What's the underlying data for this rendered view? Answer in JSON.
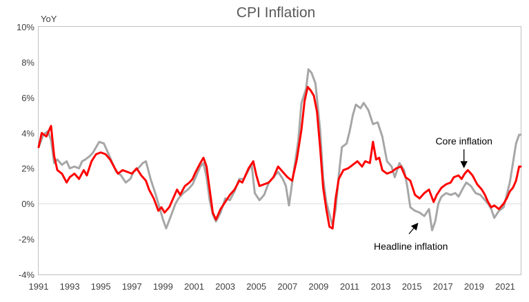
{
  "chart_data": {
    "type": "line",
    "title": "CPI Inflation",
    "ylabel": "YoY",
    "xlabel": "",
    "xlim": [
      1991.0,
      2022.0
    ],
    "ylim": [
      -4,
      10
    ],
    "x_ticks": [
      1991,
      1993,
      1995,
      1997,
      1999,
      2001,
      2003,
      2005,
      2007,
      2009,
      2011,
      2013,
      2015,
      2017,
      2019,
      2021
    ],
    "y_ticks": [
      -4,
      -2,
      0,
      2,
      4,
      6,
      8,
      10
    ],
    "y_tick_suffix": "%",
    "zero_line": true,
    "grid": false,
    "annotations": [
      {
        "text": "Core inflation",
        "series": "Core inflation",
        "x": 2018.35,
        "y": 1.95
      },
      {
        "text": "Headline inflation",
        "series": "Headline inflation",
        "x": 2015.25,
        "y": -1.0
      }
    ],
    "series": [
      {
        "name": "Headline inflation",
        "color": "#a6a6a6",
        "points": [
          [
            1991.0,
            3.2
          ],
          [
            1991.3,
            3.9
          ],
          [
            1991.6,
            4.1
          ],
          [
            1991.8,
            3.6
          ],
          [
            1992.0,
            2.3
          ],
          [
            1992.2,
            2.5
          ],
          [
            1992.5,
            2.2
          ],
          [
            1992.8,
            2.4
          ],
          [
            1993.0,
            2.0
          ],
          [
            1993.3,
            2.1
          ],
          [
            1993.6,
            2.0
          ],
          [
            1993.8,
            2.4
          ],
          [
            1994.0,
            2.5
          ],
          [
            1994.3,
            2.7
          ],
          [
            1994.5,
            2.9
          ],
          [
            1994.7,
            3.2
          ],
          [
            1994.9,
            3.5
          ],
          [
            1995.2,
            3.4
          ],
          [
            1995.5,
            2.8
          ],
          [
            1995.8,
            2.2
          ],
          [
            1996.0,
            1.8
          ],
          [
            1996.3,
            1.6
          ],
          [
            1996.6,
            1.2
          ],
          [
            1996.9,
            1.4
          ],
          [
            1997.1,
            1.8
          ],
          [
            1997.4,
            2.0
          ],
          [
            1997.7,
            2.3
          ],
          [
            1997.9,
            2.4
          ],
          [
            1998.2,
            1.4
          ],
          [
            1998.5,
            0.6
          ],
          [
            1998.8,
            -0.3
          ],
          [
            1999.0,
            -0.9
          ],
          [
            1999.2,
            -1.4
          ],
          [
            1999.5,
            -0.7
          ],
          [
            1999.8,
            0.0
          ],
          [
            2000.0,
            0.3
          ],
          [
            2000.3,
            0.6
          ],
          [
            2000.6,
            0.8
          ],
          [
            2000.9,
            1.1
          ],
          [
            2001.1,
            1.5
          ],
          [
            2001.4,
            2.1
          ],
          [
            2001.6,
            2.3
          ],
          [
            2001.8,
            1.5
          ],
          [
            2002.0,
            0.2
          ],
          [
            2002.2,
            -0.6
          ],
          [
            2002.4,
            -1.0
          ],
          [
            2002.7,
            -0.5
          ],
          [
            2003.0,
            0.3
          ],
          [
            2003.3,
            0.2
          ],
          [
            2003.6,
            0.7
          ],
          [
            2003.9,
            1.4
          ],
          [
            2004.2,
            1.4
          ],
          [
            2004.5,
            1.9
          ],
          [
            2004.7,
            2.2
          ],
          [
            2004.9,
            0.6
          ],
          [
            2005.2,
            0.2
          ],
          [
            2005.5,
            0.5
          ],
          [
            2005.8,
            1.2
          ],
          [
            2006.1,
            1.5
          ],
          [
            2006.4,
            1.8
          ],
          [
            2006.7,
            1.4
          ],
          [
            2006.9,
            1.0
          ],
          [
            2007.1,
            -0.1
          ],
          [
            2007.4,
            1.8
          ],
          [
            2007.7,
            3.6
          ],
          [
            2007.9,
            5.7
          ],
          [
            2008.2,
            6.5
          ],
          [
            2008.35,
            7.6
          ],
          [
            2008.55,
            7.4
          ],
          [
            2008.8,
            6.8
          ],
          [
            2009.1,
            4.2
          ],
          [
            2009.3,
            1.4
          ],
          [
            2009.5,
            0.1
          ],
          [
            2009.7,
            -0.6
          ],
          [
            2009.9,
            -1.2
          ],
          [
            2010.1,
            -0.3
          ],
          [
            2010.3,
            1.6
          ],
          [
            2010.5,
            3.2
          ],
          [
            2010.8,
            3.4
          ],
          [
            2011.0,
            4.1
          ],
          [
            2011.2,
            5.0
          ],
          [
            2011.4,
            5.6
          ],
          [
            2011.7,
            5.4
          ],
          [
            2011.9,
            5.7
          ],
          [
            2012.2,
            5.3
          ],
          [
            2012.5,
            4.5
          ],
          [
            2012.8,
            4.6
          ],
          [
            2013.1,
            3.8
          ],
          [
            2013.4,
            2.4
          ],
          [
            2013.7,
            2.1
          ],
          [
            2013.9,
            1.5
          ],
          [
            2014.2,
            2.3
          ],
          [
            2014.5,
            1.9
          ],
          [
            2014.7,
            1.0
          ],
          [
            2014.9,
            -0.2
          ],
          [
            2015.2,
            -0.4
          ],
          [
            2015.5,
            -0.5
          ],
          [
            2015.8,
            -0.7
          ],
          [
            2016.1,
            -0.3
          ],
          [
            2016.3,
            -1.5
          ],
          [
            2016.5,
            -1.0
          ],
          [
            2016.7,
            0.0
          ],
          [
            2016.9,
            0.4
          ],
          [
            2017.2,
            0.6
          ],
          [
            2017.5,
            0.5
          ],
          [
            2017.8,
            0.6
          ],
          [
            2018.0,
            0.4
          ],
          [
            2018.3,
            0.9
          ],
          [
            2018.5,
            1.2
          ],
          [
            2018.8,
            1.0
          ],
          [
            2019.1,
            0.6
          ],
          [
            2019.4,
            0.5
          ],
          [
            2019.6,
            0.3
          ],
          [
            2019.9,
            0.0
          ],
          [
            2020.1,
            -0.3
          ],
          [
            2020.3,
            -0.8
          ],
          [
            2020.6,
            -0.4
          ],
          [
            2020.9,
            -0.2
          ],
          [
            2021.1,
            0.5
          ],
          [
            2021.3,
            1.2
          ],
          [
            2021.5,
            2.3
          ],
          [
            2021.7,
            3.4
          ],
          [
            2021.9,
            3.9
          ],
          [
            2022.0,
            3.9
          ]
        ]
      },
      {
        "name": "Core inflation",
        "color": "#ff0000",
        "points": [
          [
            1991.0,
            3.2
          ],
          [
            1991.2,
            4.0
          ],
          [
            1991.5,
            3.8
          ],
          [
            1991.8,
            4.4
          ],
          [
            1992.0,
            2.7
          ],
          [
            1992.2,
            1.9
          ],
          [
            1992.5,
            1.7
          ],
          [
            1992.8,
            1.2
          ],
          [
            1993.0,
            1.5
          ],
          [
            1993.3,
            1.7
          ],
          [
            1993.6,
            1.4
          ],
          [
            1993.9,
            1.9
          ],
          [
            1994.1,
            1.6
          ],
          [
            1994.4,
            2.4
          ],
          [
            1994.7,
            2.8
          ],
          [
            1995.0,
            2.9
          ],
          [
            1995.3,
            2.8
          ],
          [
            1995.6,
            2.5
          ],
          [
            1995.9,
            2.0
          ],
          [
            1996.1,
            1.7
          ],
          [
            1996.4,
            1.9
          ],
          [
            1996.7,
            1.8
          ],
          [
            1997.0,
            1.7
          ],
          [
            1997.3,
            2.0
          ],
          [
            1997.6,
            1.6
          ],
          [
            1997.9,
            1.3
          ],
          [
            1998.1,
            0.8
          ],
          [
            1998.4,
            0.3
          ],
          [
            1998.7,
            -0.4
          ],
          [
            1998.9,
            -0.2
          ],
          [
            1999.1,
            -0.5
          ],
          [
            1999.4,
            -0.2
          ],
          [
            1999.7,
            0.4
          ],
          [
            1999.9,
            0.8
          ],
          [
            2000.1,
            0.5
          ],
          [
            2000.4,
            1.0
          ],
          [
            2000.7,
            1.2
          ],
          [
            2000.9,
            1.4
          ],
          [
            2001.1,
            1.8
          ],
          [
            2001.4,
            2.3
          ],
          [
            2001.6,
            2.6
          ],
          [
            2001.8,
            2.1
          ],
          [
            2002.0,
            0.8
          ],
          [
            2002.2,
            -0.5
          ],
          [
            2002.4,
            -0.9
          ],
          [
            2002.7,
            -0.3
          ],
          [
            2003.0,
            0.1
          ],
          [
            2003.3,
            0.5
          ],
          [
            2003.6,
            0.8
          ],
          [
            2003.9,
            1.3
          ],
          [
            2004.1,
            1.2
          ],
          [
            2004.3,
            1.6
          ],
          [
            2004.5,
            2.0
          ],
          [
            2004.8,
            2.4
          ],
          [
            2005.0,
            1.6
          ],
          [
            2005.2,
            1.0
          ],
          [
            2005.5,
            1.1
          ],
          [
            2005.8,
            1.2
          ],
          [
            2006.1,
            1.5
          ],
          [
            2006.4,
            2.1
          ],
          [
            2006.7,
            1.8
          ],
          [
            2007.0,
            1.5
          ],
          [
            2007.3,
            1.3
          ],
          [
            2007.6,
            2.5
          ],
          [
            2007.9,
            4.2
          ],
          [
            2008.1,
            5.8
          ],
          [
            2008.3,
            6.6
          ],
          [
            2008.5,
            6.4
          ],
          [
            2008.7,
            6.1
          ],
          [
            2008.9,
            5.2
          ],
          [
            2009.1,
            3.2
          ],
          [
            2009.3,
            0.9
          ],
          [
            2009.5,
            -0.3
          ],
          [
            2009.7,
            -1.3
          ],
          [
            2009.9,
            -1.4
          ],
          [
            2010.1,
            0.3
          ],
          [
            2010.3,
            1.4
          ],
          [
            2010.6,
            1.9
          ],
          [
            2010.9,
            2.0
          ],
          [
            2011.2,
            2.2
          ],
          [
            2011.5,
            2.4
          ],
          [
            2011.8,
            2.1
          ],
          [
            2012.0,
            2.4
          ],
          [
            2012.3,
            2.3
          ],
          [
            2012.5,
            3.5
          ],
          [
            2012.7,
            2.5
          ],
          [
            2012.9,
            2.6
          ],
          [
            2013.1,
            1.9
          ],
          [
            2013.4,
            1.7
          ],
          [
            2013.7,
            1.8
          ],
          [
            2014.0,
            2.0
          ],
          [
            2014.3,
            2.1
          ],
          [
            2014.6,
            1.5
          ],
          [
            2014.9,
            1.3
          ],
          [
            2015.2,
            0.5
          ],
          [
            2015.5,
            0.3
          ],
          [
            2015.8,
            0.6
          ],
          [
            2016.1,
            0.8
          ],
          [
            2016.4,
            0.1
          ],
          [
            2016.6,
            0.5
          ],
          [
            2016.9,
            0.9
          ],
          [
            2017.2,
            1.1
          ],
          [
            2017.5,
            1.2
          ],
          [
            2017.7,
            1.5
          ],
          [
            2018.0,
            1.6
          ],
          [
            2018.2,
            1.4
          ],
          [
            2018.4,
            1.7
          ],
          [
            2018.6,
            1.9
          ],
          [
            2018.9,
            1.6
          ],
          [
            2019.2,
            1.1
          ],
          [
            2019.5,
            0.8
          ],
          [
            2019.7,
            0.5
          ],
          [
            2019.9,
            0.1
          ],
          [
            2020.1,
            -0.2
          ],
          [
            2020.3,
            -0.1
          ],
          [
            2020.6,
            -0.3
          ],
          [
            2020.9,
            0.0
          ],
          [
            2021.1,
            0.3
          ],
          [
            2021.3,
            0.7
          ],
          [
            2021.5,
            0.9
          ],
          [
            2021.7,
            1.3
          ],
          [
            2021.9,
            2.1
          ],
          [
            2022.0,
            2.1
          ]
        ]
      }
    ]
  }
}
